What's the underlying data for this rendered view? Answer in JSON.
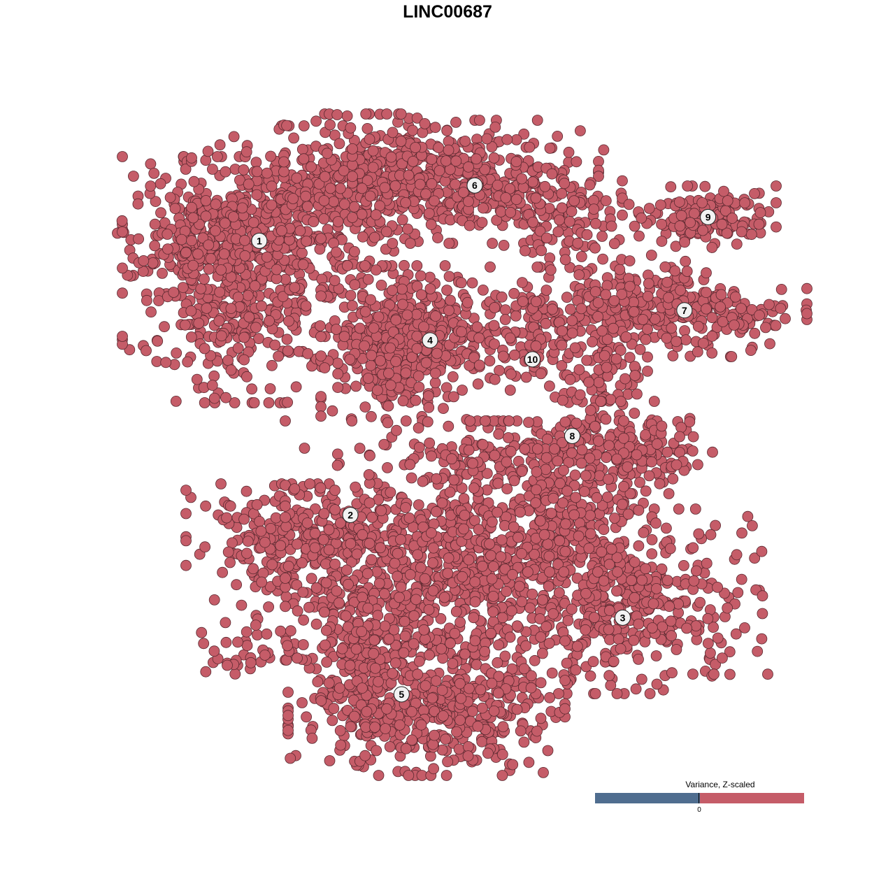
{
  "chart_data": {
    "type": "scatter",
    "title": "LINC00687",
    "xlabel": "",
    "ylabel": "",
    "xlim": [
      -40,
      40
    ],
    "ylim": [
      -40,
      40
    ],
    "grid": false,
    "axes_visible": false,
    "point_color": "#c55c68",
    "point_value_sign": "positive",
    "cluster_labels": [
      {
        "label": "1",
        "x": -25.3,
        "y": 25.9
      },
      {
        "label": "6",
        "x": 1.2,
        "y": 32.9
      },
      {
        "label": "9",
        "x": 29.9,
        "y": 28.9
      },
      {
        "label": "7",
        "x": 27.0,
        "y": 17.1
      },
      {
        "label": "4",
        "x": -4.3,
        "y": 13.3
      },
      {
        "label": "10",
        "x": 8.3,
        "y": 10.9
      },
      {
        "label": "8",
        "x": 13.2,
        "y": 1.2
      },
      {
        "label": "2",
        "x": -14.1,
        "y": -8.8
      },
      {
        "label": "3",
        "x": 19.4,
        "y": -21.8
      },
      {
        "label": "5",
        "x": -7.8,
        "y": -31.5
      }
    ],
    "legend": {
      "title": "Variance, Z-scaled",
      "tick_label": "0",
      "low_color": "#4f6d8f",
      "high_color": "#c55c68",
      "placement": "bottom-right"
    }
  }
}
